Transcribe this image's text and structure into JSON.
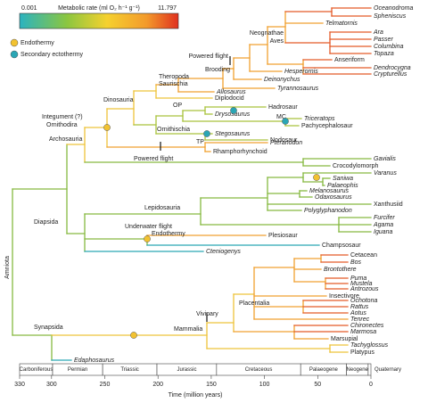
{
  "colorbar": {
    "title": "Metabolic rate (ml O₂ h⁻¹ g⁻¹)",
    "min": 0.001,
    "max": 11.797
  },
  "legend": [
    {
      "label": "Endothermy",
      "color": "#f2c230"
    },
    {
      "label": "Secondary ectothermy",
      "color": "#2aa6b5"
    }
  ],
  "tips": [
    "Oceanodroma",
    "Spheniscus",
    "Telmatornis",
    "Ara",
    "Passer",
    "Columbina",
    "Topaza",
    "Anseriform",
    "Dendrocygna",
    "Crypturellus",
    "Hesperornis",
    "Deinonychus",
    "Tyrannosaurus",
    "Allosaurus",
    "Diplodocid",
    "Hadrosaur",
    "Drysosaurus",
    "Triceratops",
    "Pachycephalosaur",
    "Stegosaurus",
    "Nodosaur",
    "Pteranodon",
    "Rhamphorhynchoid",
    "Gavialis",
    "Crocodylomorph",
    "Varanus",
    "Saniwa",
    "Palaeophis",
    "Melanosaurus",
    "Odaxosaurus",
    "Xanthusiid",
    "Polyglyphanodon",
    "Furcifer",
    "Agama",
    "Iguana",
    "Plesiosaur",
    "Champsosaur",
    "Cteniogenys",
    "Cetacean",
    "Bos",
    "Brontothere",
    "Puma",
    "Mustela",
    "Antrozous",
    "Insectivore",
    "Ochotona",
    "Rattus",
    "Aotus",
    "Tenrec",
    "Chironectes",
    "Marmosa",
    "Marsupial",
    "Tachyglossus",
    "Platypus",
    "Edaphosaurus"
  ],
  "clade_labels": [
    "Neognathae",
    "Aves",
    "Powered flight",
    "Brooding",
    "Theropoda",
    "Saurischia",
    "Dinosauria",
    "OP",
    "Ornithischia",
    "TP",
    "MC",
    "Integument (?)",
    "Ornithodira",
    "Archosauria",
    "Powered flight",
    "Diapsida",
    "Lepidosauria",
    "Underwater flight",
    "Endothermy",
    "Amniota",
    "Synapsida",
    "Mammalia",
    "Vivipary",
    "Placentalia"
  ],
  "time_axis": {
    "label": "Time (million years)",
    "xlim": [
      330,
      0
    ],
    "ticks": [
      330,
      300,
      250,
      200,
      150,
      100,
      50,
      0
    ],
    "periods": [
      {
        "name": "Carboniferous",
        "start": 330,
        "end": 299
      },
      {
        "name": "Permian",
        "start": 299,
        "end": 252
      },
      {
        "name": "Triassic",
        "start": 252,
        "end": 201
      },
      {
        "name": "Jurassic",
        "start": 201,
        "end": 145
      },
      {
        "name": "Cretaceous",
        "start": 145,
        "end": 66
      },
      {
        "name": "Palaeogene",
        "start": 66,
        "end": 23
      },
      {
        "name": "Neogene",
        "start": 23,
        "end": 2.6
      },
      {
        "name": "Quaternary",
        "start": 2.6,
        "end": 0
      }
    ]
  }
}
